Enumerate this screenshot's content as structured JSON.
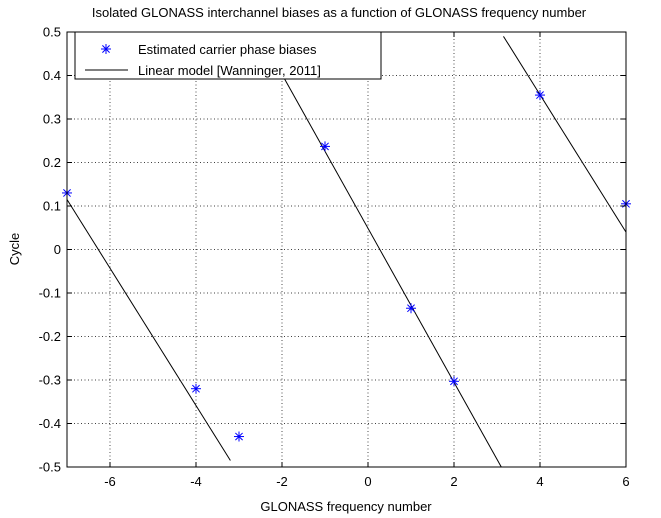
{
  "chart_data": {
    "type": "scatter",
    "title": "Isolated GLONASS interchannel biases as a function of GLONASS frequency number",
    "xlabel": "GLONASS frequency number",
    "ylabel": "Cycle",
    "xlim": [
      -7,
      6
    ],
    "ylim": [
      -0.5,
      0.5
    ],
    "xticks": [
      -6,
      -4,
      -2,
      0,
      2,
      4,
      6
    ],
    "xtick_labels": [
      "-6",
      "-4",
      "-2",
      "0",
      "2",
      "4",
      "6"
    ],
    "yticks": [
      -0.5,
      -0.4,
      -0.3,
      -0.2,
      -0.1,
      0,
      0.1,
      0.2,
      0.3,
      0.4,
      0.5
    ],
    "ytick_labels": [
      "-0.5",
      "-0.4",
      "-0.3",
      "-0.2",
      "-0.1",
      "0",
      "0.1",
      "0.2",
      "0.3",
      "0.4",
      "0.5"
    ],
    "grid": true,
    "legend_position": "top-left",
    "series": [
      {
        "name": "Estimated carrier phase biases",
        "kind": "markers",
        "marker": "asterisk",
        "color": "#0000ff",
        "points": [
          {
            "x": -7,
            "y": 0.13
          },
          {
            "x": -4,
            "y": -0.32
          },
          {
            "x": -3,
            "y": -0.43
          },
          {
            "x": -1,
            "y": 0.237
          },
          {
            "x": 1,
            "y": -0.135
          },
          {
            "x": 2,
            "y": -0.303
          },
          {
            "x": 4,
            "y": 0.355
          },
          {
            "x": 6,
            "y": 0.105
          }
        ]
      },
      {
        "name": "Linear model [Wanninger, 2011]",
        "kind": "line",
        "color": "#000000",
        "segments": [
          [
            {
              "x": -7,
              "y": 0.115
            },
            {
              "x": -3.2,
              "y": -0.485
            }
          ],
          [
            {
              "x": -2.55,
              "y": 0.5
            },
            {
              "x": 3.1,
              "y": -0.5
            }
          ],
          [
            {
              "x": 3.15,
              "y": 0.49
            },
            {
              "x": 6,
              "y": 0.04
            }
          ]
        ]
      }
    ]
  }
}
